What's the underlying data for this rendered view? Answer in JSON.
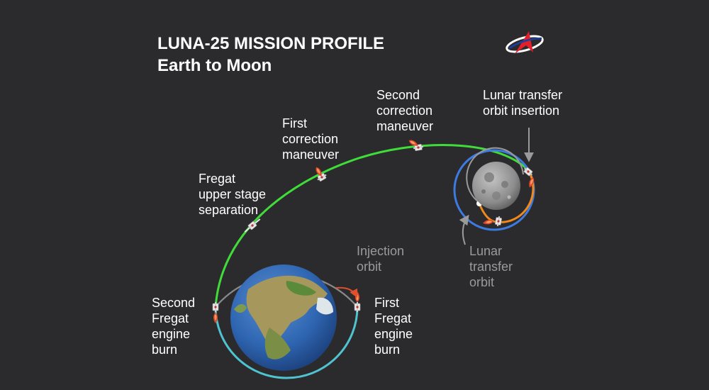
{
  "title": {
    "line1": "LUNA-25 MISSION PROFILE",
    "line2": "Earth to Moon"
  },
  "labels": {
    "second_fregat_burn": "Second\nFregat\nengine\nburn",
    "first_fregat_burn": "First\nFregat\nengine\nburn",
    "injection_orbit": "Injection\norbit",
    "fregat_separation": "Fregat\nupper stage\nseparation",
    "first_correction": "First\ncorrection\nmaneuver",
    "second_correction": "Second\ncorrection\nmaneuver",
    "lunar_orbit_insertion": "Lunar transfer\norbit insertion",
    "lunar_transfer_orbit": "Lunar\ntransfer\norbit"
  },
  "colors": {
    "background": "#2b2b2d",
    "trajectory": "#3fdc3a",
    "injection_orbit_lower": "#4fc3d0",
    "injection_orbit_upper": "#8a8a8a",
    "lunar_orbit_outer": "#3d7be0",
    "lunar_orbit_arc": "#f08a1c",
    "logo_red": "#e0202a",
    "logo_blue": "#1a3fa0"
  },
  "icons": {
    "spacecraft": "spacecraft-icon",
    "engine_flame": "engine-flame-icon",
    "logo": "roscosmos-logo"
  }
}
